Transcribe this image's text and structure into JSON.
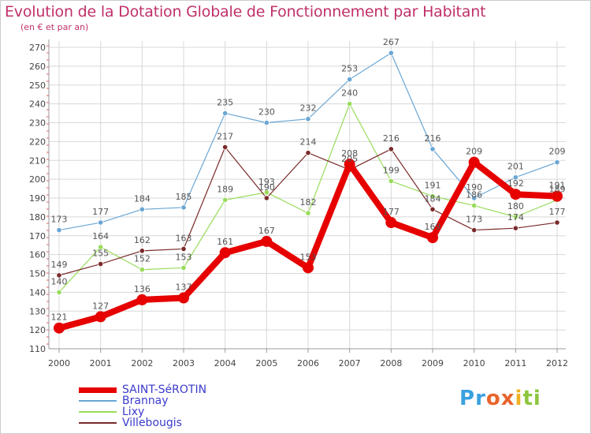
{
  "title": "Evolution de la Dotation Globale de Fonctionnement par Habitant",
  "subtitle": "(en € et par an)",
  "logo": {
    "letters": [
      "P",
      "r",
      "o",
      "x",
      "i",
      "t",
      "i"
    ],
    "colors": [
      "#3aa0e0",
      "#3aa0e0",
      "#e8642c",
      "#e8642c",
      "#f0b020",
      "#8cc63f",
      "#8cc63f"
    ]
  },
  "chart_data": {
    "type": "line",
    "title": "Evolution de la Dotation Globale de Fonctionnement par Habitant",
    "subtitle": "(en € et par an)",
    "xlabel": "",
    "ylabel": "",
    "x": [
      "2000",
      "2001",
      "2002",
      "2003",
      "2004",
      "2005",
      "2006",
      "2007",
      "2008",
      "2009",
      "2010",
      "2011",
      "2012"
    ],
    "ylim": [
      110,
      270
    ],
    "yticks": [
      "110",
      "120",
      "130",
      "140",
      "150",
      "160",
      "170",
      "180",
      "190",
      "200",
      "210",
      "220",
      "230",
      "240",
      "250",
      "260",
      "270"
    ],
    "grid": true,
    "legend_position": "bottom-left",
    "series": [
      {
        "name": "SAINT-SéROTIN",
        "color": "#e60000",
        "width": "thick",
        "values": [
          121,
          127,
          136,
          137,
          161,
          167,
          153,
          208,
          177,
          169,
          209,
          192,
          191
        ],
        "labels": [
          "121",
          "127",
          "136",
          "137",
          "161",
          "167",
          "153",
          "208",
          "177",
          "169",
          "209",
          "192",
          "191"
        ]
      },
      {
        "name": "Brannay",
        "color": "#6aa6d4",
        "width": "thin",
        "values": [
          173,
          177,
          184,
          185,
          235,
          230,
          232,
          253,
          267,
          216,
          190,
          201,
          209
        ],
        "labels": [
          "173",
          "177",
          "184",
          "185",
          "235",
          "230",
          "232",
          "253",
          "267",
          "216",
          "190",
          "201",
          "209"
        ]
      },
      {
        "name": "Lixy",
        "color": "#98dc5a",
        "width": "thin",
        "values": [
          140,
          164,
          152,
          153,
          189,
          193,
          182,
          240,
          199,
          191,
          186,
          180,
          189
        ],
        "labels": [
          "140",
          "164",
          "152",
          "153",
          "189",
          "193",
          "182",
          "240",
          "199",
          "191",
          "186",
          "180",
          "189"
        ]
      },
      {
        "name": "Villebougis",
        "color": "#7a2a2a",
        "width": "thin",
        "values": [
          149,
          155,
          162,
          163,
          217,
          190,
          214,
          205,
          216,
          184,
          173,
          174,
          177
        ],
        "labels": [
          "149",
          "155",
          "162",
          "163",
          "217",
          "190",
          "214",
          "205",
          "216",
          "184",
          "173",
          "174",
          "177"
        ]
      }
    ]
  }
}
